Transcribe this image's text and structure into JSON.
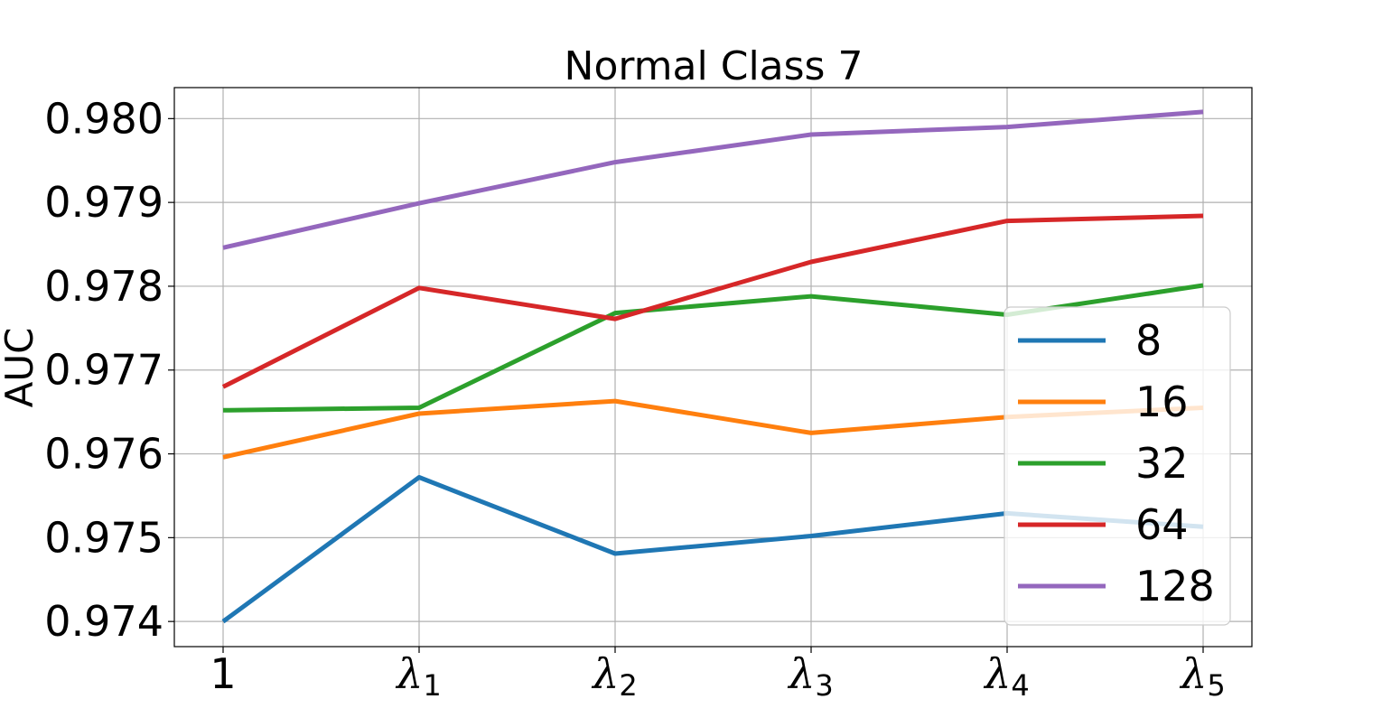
{
  "chart_data": {
    "type": "line",
    "title": "Normal Class 7",
    "ylabel": "AUC",
    "xlabel": "",
    "x": [
      {
        "base": "1",
        "sub": ""
      },
      {
        "base": "λ",
        "sub": "1"
      },
      {
        "base": "λ",
        "sub": "2"
      },
      {
        "base": "λ",
        "sub": "3"
      },
      {
        "base": "λ",
        "sub": "4"
      },
      {
        "base": "λ",
        "sub": "5"
      }
    ],
    "ylim": [
      0.9737,
      0.98037
    ],
    "yticks": [
      0.974,
      0.975,
      0.976,
      0.977,
      0.978,
      0.979,
      0.98
    ],
    "ytick_labels": [
      "0.974",
      "0.975",
      "0.976",
      "0.977",
      "0.978",
      "0.979",
      "0.980"
    ],
    "grid": true,
    "legend_position": "lower-right",
    "series": [
      {
        "name": "8",
        "color": "#1f77b4",
        "values": [
          0.974,
          0.97572,
          0.97481,
          0.97502,
          0.97529,
          0.97513
        ]
      },
      {
        "name": "16",
        "color": "#ff7f0e",
        "values": [
          0.97596,
          0.97648,
          0.97663,
          0.97625,
          0.97644,
          0.97655
        ]
      },
      {
        "name": "32",
        "color": "#2ca02c",
        "values": [
          0.97652,
          0.97655,
          0.97768,
          0.97788,
          0.97766,
          0.97801
        ]
      },
      {
        "name": "64",
        "color": "#d62728",
        "values": [
          0.9768,
          0.97798,
          0.97761,
          0.97829,
          0.97878,
          0.97884
        ]
      },
      {
        "name": "128",
        "color": "#9467bd",
        "values": [
          0.97846,
          0.97899,
          0.97948,
          0.97981,
          0.9799,
          0.98008
        ]
      }
    ]
  }
}
